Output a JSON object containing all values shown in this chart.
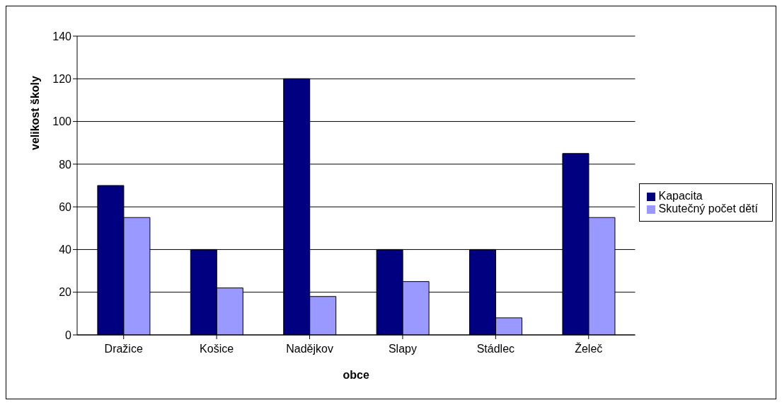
{
  "chart_data": {
    "type": "bar",
    "xlabel": "obce",
    "ylabel": "velikost školy",
    "categories": [
      "Dražice",
      "Košice",
      "Nadějkov",
      "Slapy",
      "Stádlec",
      "Želeč"
    ],
    "series": [
      {
        "name": "Kapacita",
        "color": "#000080",
        "values": [
          70,
          40,
          120,
          40,
          40,
          85
        ]
      },
      {
        "name": "Skutečný počet dětí",
        "color": "#9999ff",
        "values": [
          55,
          22,
          18,
          25,
          8,
          55
        ]
      }
    ],
    "ylim": [
      0,
      140
    ],
    "yticks": [
      0,
      20,
      40,
      60,
      80,
      100,
      120,
      140
    ],
    "grid": "y",
    "legend": "right"
  }
}
